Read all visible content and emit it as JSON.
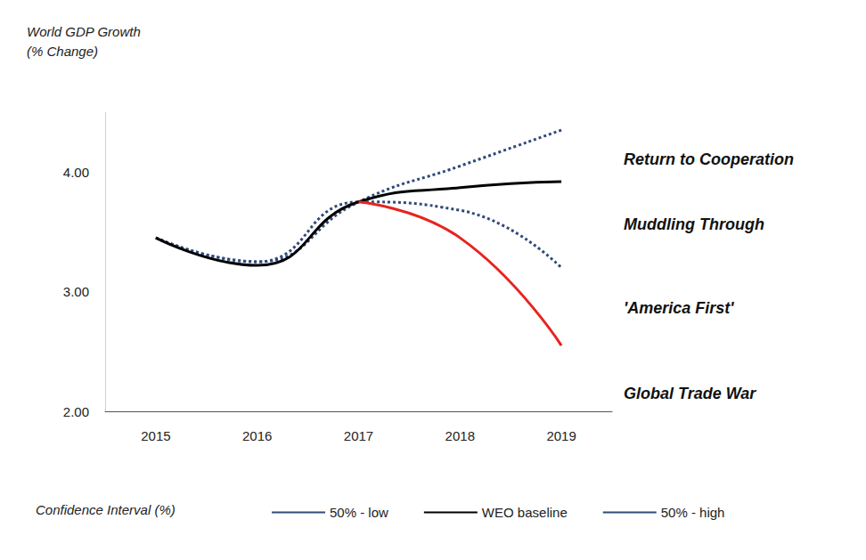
{
  "chart_data": {
    "type": "line",
    "ylabel": "World GDP Growth\n(% Change)",
    "categories": [
      "2015",
      "2016",
      "2017",
      "2018",
      "2019"
    ],
    "series": [
      {
        "name": "50% - low",
        "color": "#2f4a78",
        "line_style": "dotted",
        "values": [
          3.45,
          3.25,
          3.75,
          3.68,
          3.2
        ]
      },
      {
        "name": "WEO baseline",
        "color": "#000000",
        "line_style": "solid",
        "values": [
          3.45,
          3.22,
          3.75,
          3.87,
          3.92
        ]
      },
      {
        "name": "50% - high",
        "color": "#2f4a78",
        "line_style": "dotted",
        "values": [
          3.45,
          3.25,
          3.75,
          4.05,
          4.35
        ]
      },
      {
        "color": "#e8231f",
        "line_style": "solid",
        "values": [
          null,
          null,
          3.75,
          3.45,
          2.55
        ]
      }
    ],
    "ylim": [
      2,
      4.5
    ],
    "yticks": [
      {
        "value": 2,
        "label": "2.00"
      },
      {
        "value": 3,
        "label": "3.00"
      },
      {
        "value": 4,
        "label": "4.00"
      }
    ],
    "annotations": [
      "Return to Cooperation",
      "Muddling Through",
      "'America First'",
      "Global Trade War"
    ],
    "legend_title": "Confidence Interval (%)",
    "legend": "bottom",
    "grid": false
  }
}
